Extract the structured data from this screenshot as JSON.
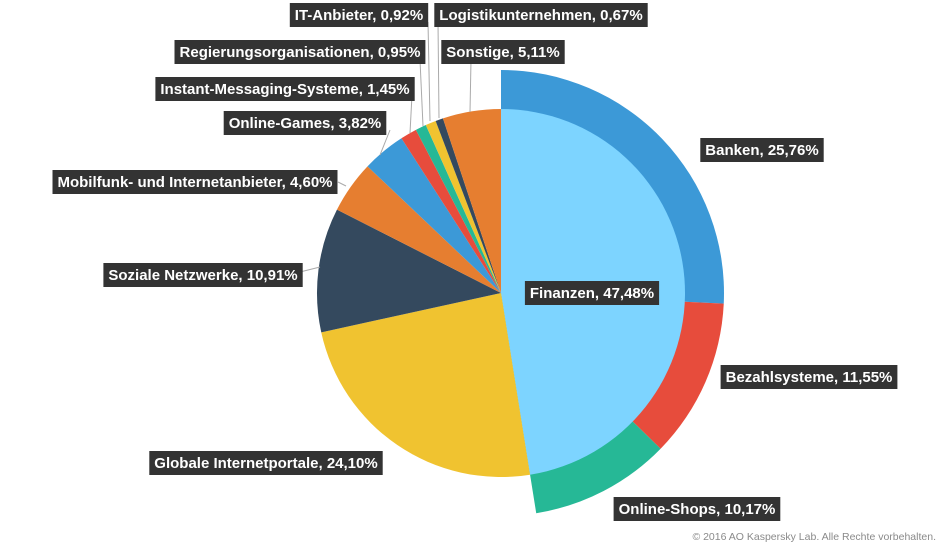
{
  "chart_data": {
    "type": "pie",
    "title": "",
    "slices": [
      {
        "label": "Finanzen, 47,48%",
        "value": 47.48,
        "color": "#7dd4ff"
      },
      {
        "label": "Globale Internetportale, 24,10%",
        "value": 24.1,
        "color": "#f0c330"
      },
      {
        "label": "Soziale Netzwerke, 10,91%",
        "value": 10.91,
        "color": "#34495e"
      },
      {
        "label": "Mobilfunk- und Internetanbieter, 4,60%",
        "value": 4.6,
        "color": "#e67e30"
      },
      {
        "label": "Online-Games, 3,82%",
        "value": 3.82,
        "color": "#3c99d7"
      },
      {
        "label": "Instant-Messaging-Systeme, 1,45%",
        "value": 1.45,
        "color": "#e74c3c"
      },
      {
        "label": "Regierungsorganisationen, 0,95%",
        "value": 0.95,
        "color": "#26b896"
      },
      {
        "label": "IT-Anbieter, 0,92%",
        "value": 0.92,
        "color": "#f0c330"
      },
      {
        "label": "Logistikunternehmen, 0,67%",
        "value": 0.67,
        "color": "#34495e"
      },
      {
        "label": "Sonstige, 5,11%",
        "value": 5.11,
        "color": "#e67e30"
      }
    ],
    "finance_breakdown": [
      {
        "label": "Banken, 25,76%",
        "value": 25.76,
        "color": "#3c99d7"
      },
      {
        "label": "Bezahlsysteme, 11,55%",
        "value": 11.55,
        "color": "#e74c3c"
      },
      {
        "label": "Online-Shops, 10,17%",
        "value": 10.17,
        "color": "#26b896"
      }
    ]
  },
  "footer": {
    "copyright": "© 2016 AO Kaspersky Lab. Alle Rechte vorbehalten."
  }
}
